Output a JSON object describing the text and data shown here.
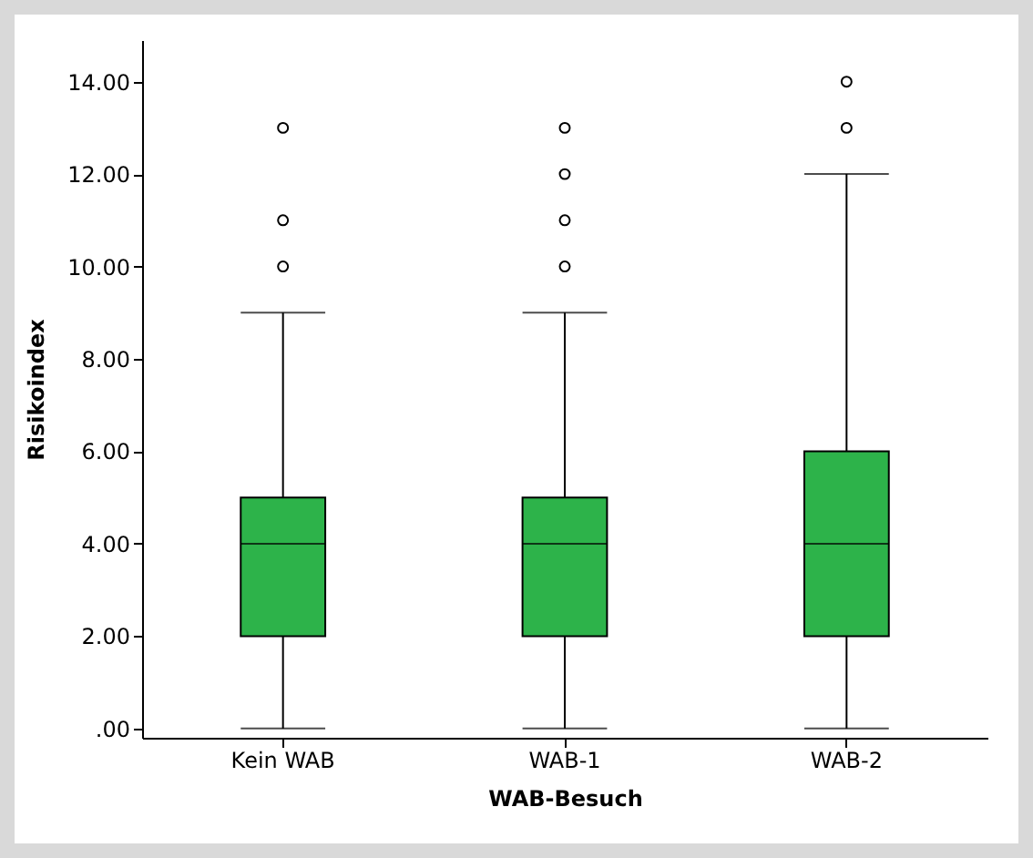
{
  "chart_data": {
    "type": "box",
    "xlabel": "WAB-Besuch",
    "ylabel": "Risikoindex",
    "categories": [
      "Kein WAB",
      "WAB-1",
      "WAB-2"
    ],
    "color": "#2db34a",
    "boxes": [
      {
        "low": 0,
        "q1": 2,
        "median": 4,
        "q3": 5,
        "high": 9,
        "outliers": [
          10,
          11,
          13
        ]
      },
      {
        "low": 0,
        "q1": 2,
        "median": 4,
        "q3": 5,
        "high": 9,
        "outliers": [
          10,
          11,
          12,
          13
        ]
      },
      {
        "low": 0,
        "q1": 2,
        "median": 4,
        "q3": 6,
        "high": 12,
        "outliers": [
          13,
          14
        ]
      }
    ],
    "ylim": [
      -0.2,
      14.9
    ],
    "yticks": [
      {
        "value": 0,
        "label": ".00"
      },
      {
        "value": 2,
        "label": "2.00"
      },
      {
        "value": 4,
        "label": "4.00"
      },
      {
        "value": 6,
        "label": "6.00"
      },
      {
        "value": 8,
        "label": "8.00"
      },
      {
        "value": 10,
        "label": "10.00"
      },
      {
        "value": 12,
        "label": "12.00"
      },
      {
        "value": 14,
        "label": "14.00"
      }
    ]
  }
}
